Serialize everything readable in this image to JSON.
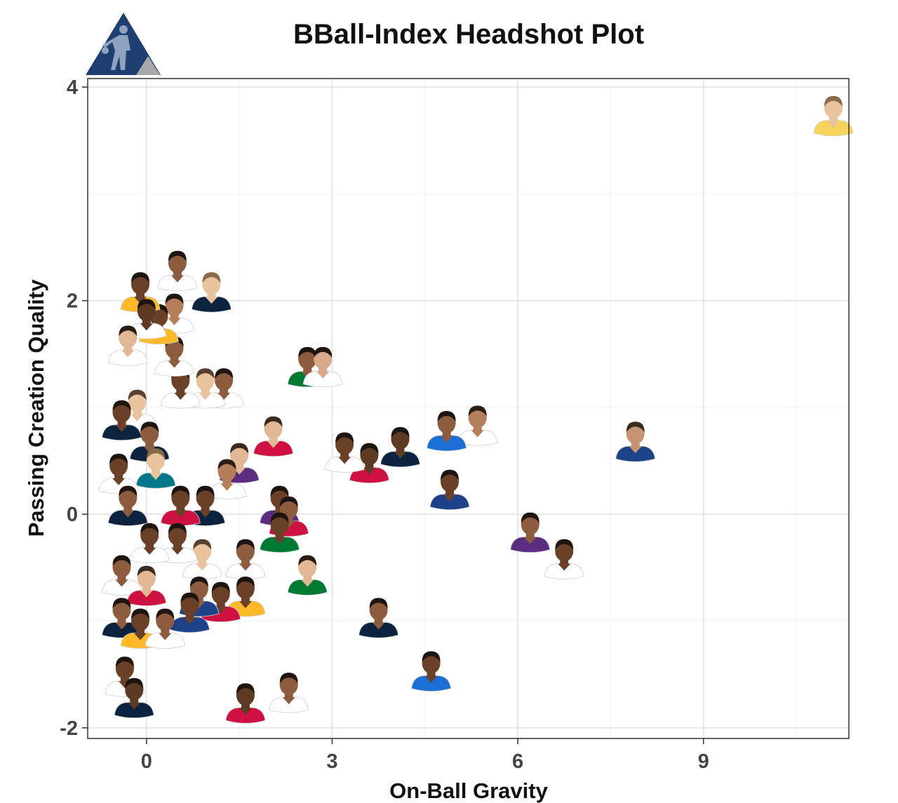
{
  "chart_data": {
    "type": "scatter",
    "title": "BBall-Index Headshot Plot",
    "xlabel": "On-Ball Gravity",
    "ylabel": "Passing Creation Quality",
    "xlim": [
      -0.95,
      11.35
    ],
    "ylim": [
      -2.1,
      4.08
    ],
    "xticks": [
      0,
      3,
      6,
      9
    ],
    "yticks": [
      -2,
      0,
      2,
      4
    ],
    "xtick_labels": [
      "0",
      "3",
      "6",
      "9"
    ],
    "ytick_labels": [
      "-2",
      "0",
      "2",
      "4"
    ],
    "grid": true,
    "legend": "none",
    "marker": "player-headshot-icon",
    "points": [
      {
        "x": 11.1,
        "y": 3.7,
        "jersey": "#f6d35b",
        "skin": "#e8c39e",
        "hair": "#8a6a4a"
      },
      {
        "x": 7.9,
        "y": 0.65,
        "jersey": "#1d428a",
        "skin": "#c69373",
        "hair": "#3a2a20"
      },
      {
        "x": 6.2,
        "y": -0.2,
        "jersey": "#5a2d81",
        "skin": "#8d5b3e",
        "hair": "#1e1510"
      },
      {
        "x": 6.75,
        "y": -0.45,
        "jersey": "#ffffff",
        "skin": "#6a4028",
        "hair": "#1e1510"
      },
      {
        "x": 5.35,
        "y": 0.8,
        "jersey": "#ffffff",
        "skin": "#b57e5a",
        "hair": "#2b1d14"
      },
      {
        "x": 4.85,
        "y": 0.75,
        "jersey": "#1d6fd8",
        "skin": "#8d5b3e",
        "hair": "#1e1510"
      },
      {
        "x": 4.9,
        "y": 0.2,
        "jersey": "#1d428a",
        "skin": "#6a4028",
        "hair": "#1e1510"
      },
      {
        "x": 4.6,
        "y": -1.5,
        "jersey": "#1d6fd8",
        "skin": "#6a4028",
        "hair": "#1e1510"
      },
      {
        "x": 3.75,
        "y": -1.0,
        "jersey": "#0c2340",
        "skin": "#8d5b3e",
        "hair": "#1e1510"
      },
      {
        "x": 4.1,
        "y": 0.6,
        "jersey": "#0c2340",
        "skin": "#5c3a24",
        "hair": "#1e1510"
      },
      {
        "x": 3.6,
        "y": 0.45,
        "jersey": "#ce1141",
        "skin": "#5c3a24",
        "hair": "#1e1510"
      },
      {
        "x": 3.2,
        "y": 0.55,
        "jersey": "#ffffff",
        "skin": "#6a4028",
        "hair": "#1e1510"
      },
      {
        "x": 2.6,
        "y": 1.35,
        "jersey": "#007a33",
        "skin": "#8d5b3e",
        "hair": "#1e1510"
      },
      {
        "x": 2.85,
        "y": 1.35,
        "jersey": "#ffffff",
        "skin": "#d9a98a",
        "hair": "#1e1510"
      },
      {
        "x": 2.6,
        "y": -0.6,
        "jersey": "#007a33",
        "skin": "#e2b894",
        "hair": "#2b1d14"
      },
      {
        "x": 2.05,
        "y": 0.7,
        "jersey": "#ce1141",
        "skin": "#e2b894",
        "hair": "#3a2a20"
      },
      {
        "x": 2.15,
        "y": 0.05,
        "jersey": "#5a2d81",
        "skin": "#6a4028",
        "hair": "#1e1510"
      },
      {
        "x": 2.3,
        "y": -0.05,
        "jersey": "#ce1141",
        "skin": "#8d5b3e",
        "hair": "#1e1510"
      },
      {
        "x": 2.15,
        "y": -0.2,
        "jersey": "#007a33",
        "skin": "#6a4028",
        "hair": "#1e1510"
      },
      {
        "x": 2.3,
        "y": -1.7,
        "jersey": "#ffffff",
        "skin": "#8d5b3e",
        "hair": "#1e1510"
      },
      {
        "x": 1.6,
        "y": -1.8,
        "jersey": "#ce1141",
        "skin": "#5c3a24",
        "hair": "#1e1510"
      },
      {
        "x": 1.5,
        "y": 0.45,
        "jersey": "#5a2d81",
        "skin": "#e2b894",
        "hair": "#3a2a20"
      },
      {
        "x": 1.6,
        "y": -0.45,
        "jersey": "#ffffff",
        "skin": "#8d5b3e",
        "hair": "#1e1510"
      },
      {
        "x": 1.6,
        "y": -0.8,
        "jersey": "#fdb927",
        "skin": "#6a4028",
        "hair": "#1e1510"
      },
      {
        "x": 1.3,
        "y": 0.3,
        "jersey": "#ffffff",
        "skin": "#b57e5a",
        "hair": "#2b1d14"
      },
      {
        "x": 1.2,
        "y": -0.85,
        "jersey": "#ce1141",
        "skin": "#6a4028",
        "hair": "#1e1510"
      },
      {
        "x": 1.05,
        "y": 2.05,
        "jersey": "#0c2340",
        "skin": "#e8c39e",
        "hair": "#8a6a4a"
      },
      {
        "x": 1.25,
        "y": 1.15,
        "jersey": "#ffffff",
        "skin": "#8d5b3e",
        "hair": "#1e1510"
      },
      {
        "x": 0.95,
        "y": 1.15,
        "jersey": "#ffffff",
        "skin": "#e8c39e",
        "hair": "#5a4030"
      },
      {
        "x": 0.95,
        "y": 0.05,
        "jersey": "#0c2340",
        "skin": "#6a4028",
        "hair": "#1e1510"
      },
      {
        "x": 0.9,
        "y": -0.45,
        "jersey": "#ffffff",
        "skin": "#e8c39e",
        "hair": "#5a4030"
      },
      {
        "x": 0.85,
        "y": -0.8,
        "jersey": "#1d428a",
        "skin": "#8d5b3e",
        "hair": "#1e1510"
      },
      {
        "x": 0.5,
        "y": 2.25,
        "jersey": "#ffffff",
        "skin": "#8d5b3e",
        "hair": "#1e1510"
      },
      {
        "x": 0.55,
        "y": 1.15,
        "jersey": "#ffffff",
        "skin": "#6a4028",
        "hair": "#1e1510"
      },
      {
        "x": 0.45,
        "y": 1.85,
        "jersey": "#ffffff",
        "skin": "#b57e5a",
        "hair": "#1e1510"
      },
      {
        "x": 0.45,
        "y": 1.45,
        "jersey": "#ffffff",
        "skin": "#8d5b3e",
        "hair": "#1e1510"
      },
      {
        "x": 0.55,
        "y": 0.05,
        "jersey": "#ce1141",
        "skin": "#6a4028",
        "hair": "#1e1510"
      },
      {
        "x": 0.5,
        "y": -0.3,
        "jersey": "#ffffff",
        "skin": "#6a4028",
        "hair": "#1e1510"
      },
      {
        "x": 0.7,
        "y": -0.95,
        "jersey": "#1d428a",
        "skin": "#6a4028",
        "hair": "#1e1510"
      },
      {
        "x": 0.2,
        "y": 1.75,
        "jersey": "#fdb927",
        "skin": "#6a4028",
        "hair": "#1e1510"
      },
      {
        "x": -0.1,
        "y": 2.05,
        "jersey": "#fdb927",
        "skin": "#6a4028",
        "hair": "#1e1510"
      },
      {
        "x": 0.0,
        "y": 1.8,
        "jersey": "#ffffff",
        "skin": "#5c3a24",
        "hair": "#1e1510"
      },
      {
        "x": -0.3,
        "y": 1.55,
        "jersey": "#ffffff",
        "skin": "#e2b894",
        "hair": "#2b1d14"
      },
      {
        "x": -0.15,
        "y": 0.95,
        "jersey": "#ffffff",
        "skin": "#e8c39e",
        "hair": "#5a4030"
      },
      {
        "x": -0.4,
        "y": 0.85,
        "jersey": "#0c2340",
        "skin": "#6a4028",
        "hair": "#1e1510"
      },
      {
        "x": 0.05,
        "y": 0.65,
        "jersey": "#0c2340",
        "skin": "#8d5b3e",
        "hair": "#1e1510"
      },
      {
        "x": 0.15,
        "y": 0.4,
        "jersey": "#00788c",
        "skin": "#e8c39e",
        "hair": "#8a6a4a"
      },
      {
        "x": -0.45,
        "y": 0.35,
        "jersey": "#ffffff",
        "skin": "#6a4028",
        "hair": "#1e1510"
      },
      {
        "x": -0.3,
        "y": 0.05,
        "jersey": "#0c2340",
        "skin": "#8d5b3e",
        "hair": "#1e1510"
      },
      {
        "x": 0.05,
        "y": -0.3,
        "jersey": "#ffffff",
        "skin": "#6a4028",
        "hair": "#1e1510"
      },
      {
        "x": -0.4,
        "y": -0.6,
        "jersey": "#ffffff",
        "skin": "#8d5b3e",
        "hair": "#1e1510"
      },
      {
        "x": 0.0,
        "y": -0.7,
        "jersey": "#ce1141",
        "skin": "#e2b894",
        "hair": "#3a2a20"
      },
      {
        "x": -0.4,
        "y": -1.0,
        "jersey": "#0c2340",
        "skin": "#8d5b3e",
        "hair": "#1e1510"
      },
      {
        "x": -0.1,
        "y": -1.1,
        "jersey": "#fdb927",
        "skin": "#6a4028",
        "hair": "#1e1510"
      },
      {
        "x": 0.3,
        "y": -1.1,
        "jersey": "#ffffff",
        "skin": "#8d5b3e",
        "hair": "#1e1510"
      },
      {
        "x": -0.35,
        "y": -1.55,
        "jersey": "#ffffff",
        "skin": "#6a4028",
        "hair": "#1e1510"
      },
      {
        "x": -0.2,
        "y": -1.75,
        "jersey": "#0c2340",
        "skin": "#5c3a24",
        "hair": "#1e1510"
      }
    ]
  }
}
